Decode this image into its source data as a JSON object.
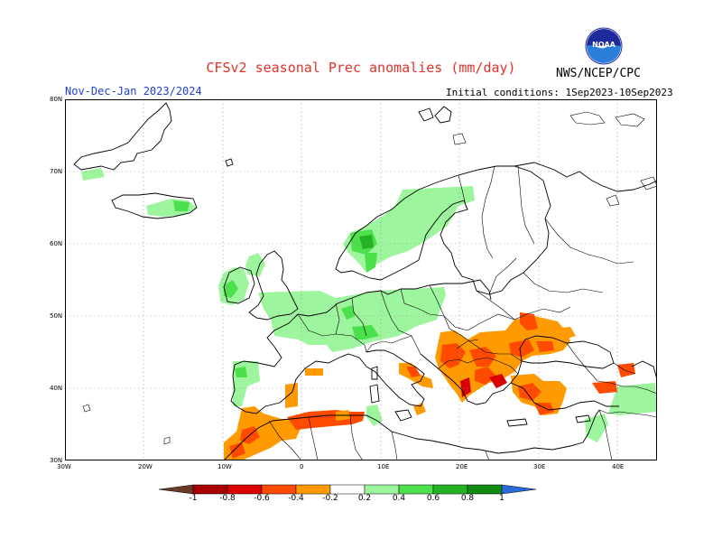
{
  "header": {
    "title": "CFSv2 seasonal Prec anomalies (mm/day)",
    "period": "Nov-Dec-Jan 2023/2024",
    "initial_conditions": "Initial conditions: 1Sep2023-10Sep2023",
    "agency": "NWS/NCEP/CPC",
    "logo_text": "NOAA"
  },
  "map": {
    "region": "Europe",
    "lat_ticks": [
      "80N",
      "70N",
      "60N",
      "50N",
      "40N",
      "30N"
    ],
    "lon_ticks": [
      "30W",
      "20W",
      "10W",
      "0",
      "10E",
      "20E",
      "30E",
      "40E"
    ],
    "grid": true
  },
  "legend": {
    "labels": [
      "-1",
      "-0.8",
      "-0.6",
      "-0.4",
      "-0.2",
      "0.2",
      "0.4",
      "0.6",
      "0.8",
      "1"
    ],
    "colors": [
      "#6b3b2a",
      "#a80000",
      "#d80000",
      "#ff4b00",
      "#ff9b00",
      "#ffffff",
      "#9df59d",
      "#4de04d",
      "#24b224",
      "#128a12",
      "#2a6bdc"
    ]
  },
  "colors": {
    "title": "#e0332b",
    "period": "#1f3fd6"
  }
}
